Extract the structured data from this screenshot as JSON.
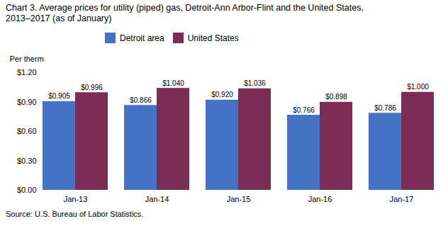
{
  "chart_data": {
    "type": "bar",
    "title": "Chart 3. Average prices for utility (piped) gas, Detroit-Ann Arbor-Flint  and the United States,",
    "subtitle": "2013–2017  (as of January)",
    "ylabel": "Per therm",
    "caption": "Source: U.S. Bureau of Labor Statistics.",
    "categories": [
      "Jan-13",
      "Jan-14",
      "Jan-15",
      "Jan-16",
      "Jan-17"
    ],
    "series": [
      {
        "name": "Detroit area",
        "color": "#4472C4",
        "values": [
          0.905,
          0.866,
          0.92,
          0.766,
          0.786
        ],
        "value_labels": [
          "$0.905",
          "$0.866",
          "$0.920",
          "$0.766",
          "$0.786"
        ]
      },
      {
        "name": "United States",
        "color": "#7B2D55",
        "values": [
          0.996,
          1.04,
          1.036,
          0.898,
          1.0
        ],
        "value_labels": [
          "$0.996",
          "$1.040",
          "$1.036",
          "$0.898",
          "$1.000"
        ]
      }
    ],
    "ylim": [
      0,
      1.2
    ],
    "yticks": [
      {
        "value": 0.0,
        "label": "$0.00"
      },
      {
        "value": 0.3,
        "label": "$0.30"
      },
      {
        "value": 0.6,
        "label": "$0.60"
      },
      {
        "value": 0.9,
        "label": "$0.90"
      },
      {
        "value": 1.2,
        "label": "$1.20"
      }
    ],
    "data_labels": true,
    "legend": "top",
    "grid": false
  }
}
